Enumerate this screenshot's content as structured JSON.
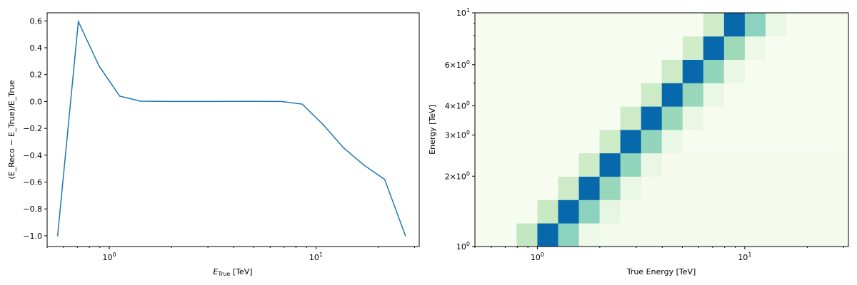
{
  "chart_data": [
    {
      "type": "line",
      "title": "",
      "xlabel_main": "E",
      "xlabel_sub": "True",
      "xlabel_unit": " [TeV]",
      "ylabel_text": "(E_Reco − E_True)/E_True",
      "xscale": "log",
      "xlim": [
        0.5,
        31.6
      ],
      "ylim": [
        -1.08,
        0.66
      ],
      "grid": false,
      "x_ticks": [
        {
          "value": 1,
          "base": "10",
          "exp": "0"
        },
        {
          "value": 10,
          "base": "10",
          "exp": "1"
        }
      ],
      "y_ticks": [
        {
          "value": 0.6,
          "label": "0.6"
        },
        {
          "value": 0.4,
          "label": "0.4"
        },
        {
          "value": 0.2,
          "label": "0.2"
        },
        {
          "value": 0.0,
          "label": "0.0"
        },
        {
          "value": -0.2,
          "label": "−0.2"
        },
        {
          "value": -0.4,
          "label": "−0.4"
        },
        {
          "value": -0.6,
          "label": "−0.6"
        },
        {
          "value": -0.8,
          "label": "−0.8"
        },
        {
          "value": -1.0,
          "label": "−1.0"
        }
      ],
      "series": [
        {
          "color": "#1f77b4",
          "x": [
            0.562,
            0.708,
            0.891,
            1.122,
            1.413,
            2.0,
            3.0,
            5.0,
            6.81,
            8.58,
            10.8,
            13.6,
            17.1,
            21.5,
            27.1
          ],
          "y": [
            -1.0,
            0.595,
            0.265,
            0.04,
            0.002,
            0.0,
            0.0,
            0.001,
            0.0,
            -0.02,
            -0.17,
            -0.345,
            -0.475,
            -0.58,
            -1.0
          ]
        }
      ]
    },
    {
      "type": "heatmap",
      "title": "",
      "xlabel": "True Energy [TeV]",
      "ylabel": "Energy [TeV]",
      "xscale": "log",
      "yscale": "log",
      "xlim": [
        0.5,
        31.6
      ],
      "ylim": [
        1,
        10
      ],
      "colormap": [
        "#f7fcf0",
        "#e0f3db",
        "#ccebc5",
        "#a8ddb5",
        "#7bccc4",
        "#4eb3d3",
        "#2b8cbe",
        "#0868ac"
      ],
      "x_ticks": [
        {
          "value": 1,
          "base": "10",
          "exp": "0"
        },
        {
          "value": 10,
          "base": "10",
          "exp": "1"
        }
      ],
      "y_ticks": [
        {
          "value": 1,
          "base": "10",
          "exp": "0",
          "mantissa": ""
        },
        {
          "value": 2,
          "base": "10",
          "exp": "0",
          "mantissa": "2×"
        },
        {
          "value": 3,
          "base": "10",
          "exp": "0",
          "mantissa": "3×"
        },
        {
          "value": 4,
          "base": "10",
          "exp": "0",
          "mantissa": "4×"
        },
        {
          "value": 6,
          "base": "10",
          "exp": "0",
          "mantissa": "6×"
        },
        {
          "value": 10,
          "base": "10",
          "exp": "1",
          "mantissa": ""
        }
      ],
      "x_edges": [
        0.5,
        0.631,
        0.794,
        1.0,
        1.259,
        1.585,
        1.995,
        2.512,
        3.162,
        3.981,
        5.012,
        6.31,
        7.943,
        10.0,
        12.59,
        15.85,
        19.95,
        25.12,
        31.62
      ],
      "y_edges": [
        1.0,
        1.259,
        1.585,
        1.995,
        2.512,
        3.162,
        3.981,
        5.012,
        6.31,
        7.943,
        10.0
      ],
      "values": [
        [
          0.0,
          0.0,
          0.32,
          1.0,
          0.52,
          0.06,
          0.02,
          0.02,
          0.02,
          0.02,
          0.02,
          0.02,
          0.02,
          0.02,
          0.02,
          0.02,
          0.02,
          0.02
        ],
        [
          0.0,
          0.0,
          0.0,
          0.3,
          1.0,
          0.52,
          0.1,
          0.02,
          0.02,
          0.02,
          0.02,
          0.02,
          0.02,
          0.02,
          0.02,
          0.02,
          0.02,
          0.02
        ],
        [
          0.0,
          0.0,
          0.0,
          0.0,
          0.28,
          1.0,
          0.48,
          0.08,
          0.02,
          0.02,
          0.02,
          0.02,
          0.02,
          0.02,
          0.02,
          0.02,
          0.02,
          0.02
        ],
        [
          0.0,
          0.0,
          0.0,
          0.0,
          0.0,
          0.28,
          1.0,
          0.5,
          0.08,
          0.02,
          0.02,
          0.02,
          0.02,
          0.02,
          0.02,
          0.02,
          0.02,
          0.02
        ],
        [
          0.0,
          0.0,
          0.0,
          0.0,
          0.0,
          0.0,
          0.28,
          1.0,
          0.5,
          0.08,
          0.0,
          0.0,
          0.0,
          0.0,
          0.0,
          0.0,
          0.0,
          0.0
        ],
        [
          0.0,
          0.0,
          0.0,
          0.0,
          0.0,
          0.0,
          0.0,
          0.28,
          1.0,
          0.48,
          0.08,
          0.0,
          0.0,
          0.0,
          0.0,
          0.0,
          0.0,
          0.0
        ],
        [
          0.0,
          0.0,
          0.0,
          0.0,
          0.0,
          0.0,
          0.0,
          0.0,
          0.28,
          1.0,
          0.48,
          0.08,
          0.0,
          0.0,
          0.0,
          0.0,
          0.0,
          0.0
        ],
        [
          0.0,
          0.0,
          0.0,
          0.0,
          0.0,
          0.0,
          0.0,
          0.0,
          0.0,
          0.28,
          1.0,
          0.5,
          0.08,
          0.0,
          0.0,
          0.0,
          0.0,
          0.0
        ],
        [
          0.0,
          0.0,
          0.0,
          0.0,
          0.0,
          0.0,
          0.0,
          0.0,
          0.0,
          0.0,
          0.26,
          1.0,
          0.46,
          0.06,
          0.0,
          0.0,
          0.0,
          0.0
        ],
        [
          0.0,
          0.0,
          0.0,
          0.0,
          0.0,
          0.0,
          0.0,
          0.0,
          0.0,
          0.0,
          0.0,
          0.26,
          1.0,
          0.52,
          0.08,
          0.0,
          0.0,
          0.0
        ]
      ]
    }
  ]
}
